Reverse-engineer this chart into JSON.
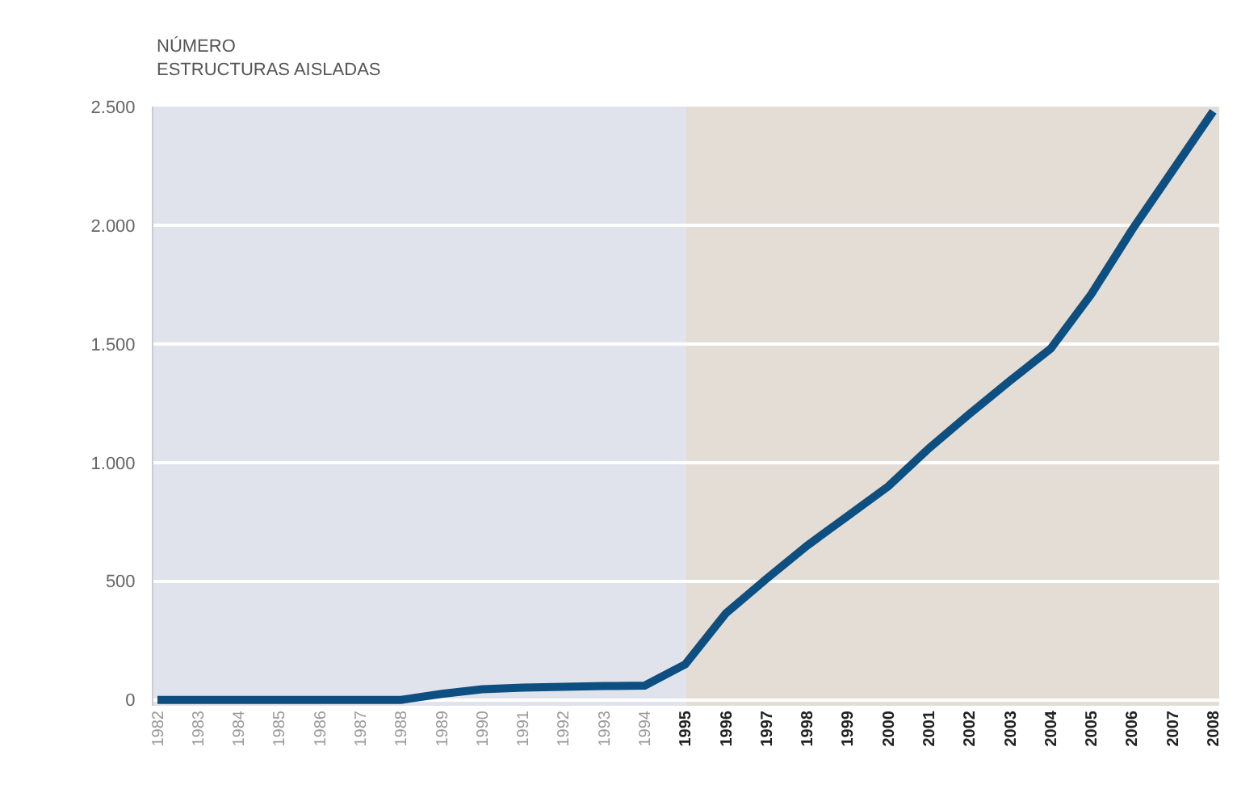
{
  "chart_data": {
    "type": "line",
    "ylabel": "NÚMERO\nESTRUCTURAS AISLADAS",
    "x": [
      1982,
      1983,
      1984,
      1985,
      1986,
      1987,
      1988,
      1989,
      1990,
      1991,
      1992,
      1993,
      1994,
      1995,
      1996,
      1997,
      1998,
      1999,
      2000,
      2001,
      2002,
      2003,
      2004,
      2005,
      2006,
      2007,
      2008
    ],
    "values": [
      0,
      0,
      0,
      0,
      0,
      0,
      0,
      25,
      45,
      52,
      55,
      58,
      60,
      150,
      365,
      510,
      650,
      775,
      900,
      1060,
      1205,
      1345,
      1480,
      1710,
      1980,
      2230,
      2480
    ],
    "color": "#0d4f80",
    "marker": "none",
    "line_style": "solid",
    "xlim": [
      1981.9,
      2008.15
    ],
    "xticks": [
      1982,
      1983,
      1984,
      1985,
      1986,
      1987,
      1988,
      1989,
      1990,
      1991,
      1992,
      1993,
      1994,
      1995,
      1996,
      1997,
      1998,
      1999,
      2000,
      2001,
      2002,
      2003,
      2004,
      2005,
      2006,
      2007,
      2008
    ],
    "ylim": [
      -25,
      2500
    ],
    "yticks": [
      0,
      500,
      {
        "value": 1000,
        "label": "1.000"
      },
      {
        "value": 1500,
        "label": "1.500"
      },
      {
        "value": 2000,
        "label": "2.000"
      },
      {
        "value": 2500,
        "label": "2.500"
      }
    ],
    "grid": "y",
    "bands": [
      {
        "axis": "x",
        "from": 1981.9,
        "to": 1995,
        "color": "#e1e3ec"
      },
      {
        "axis": "x",
        "from": 1995,
        "to": 2008.15,
        "color": "#e4ddd6"
      }
    ]
  }
}
